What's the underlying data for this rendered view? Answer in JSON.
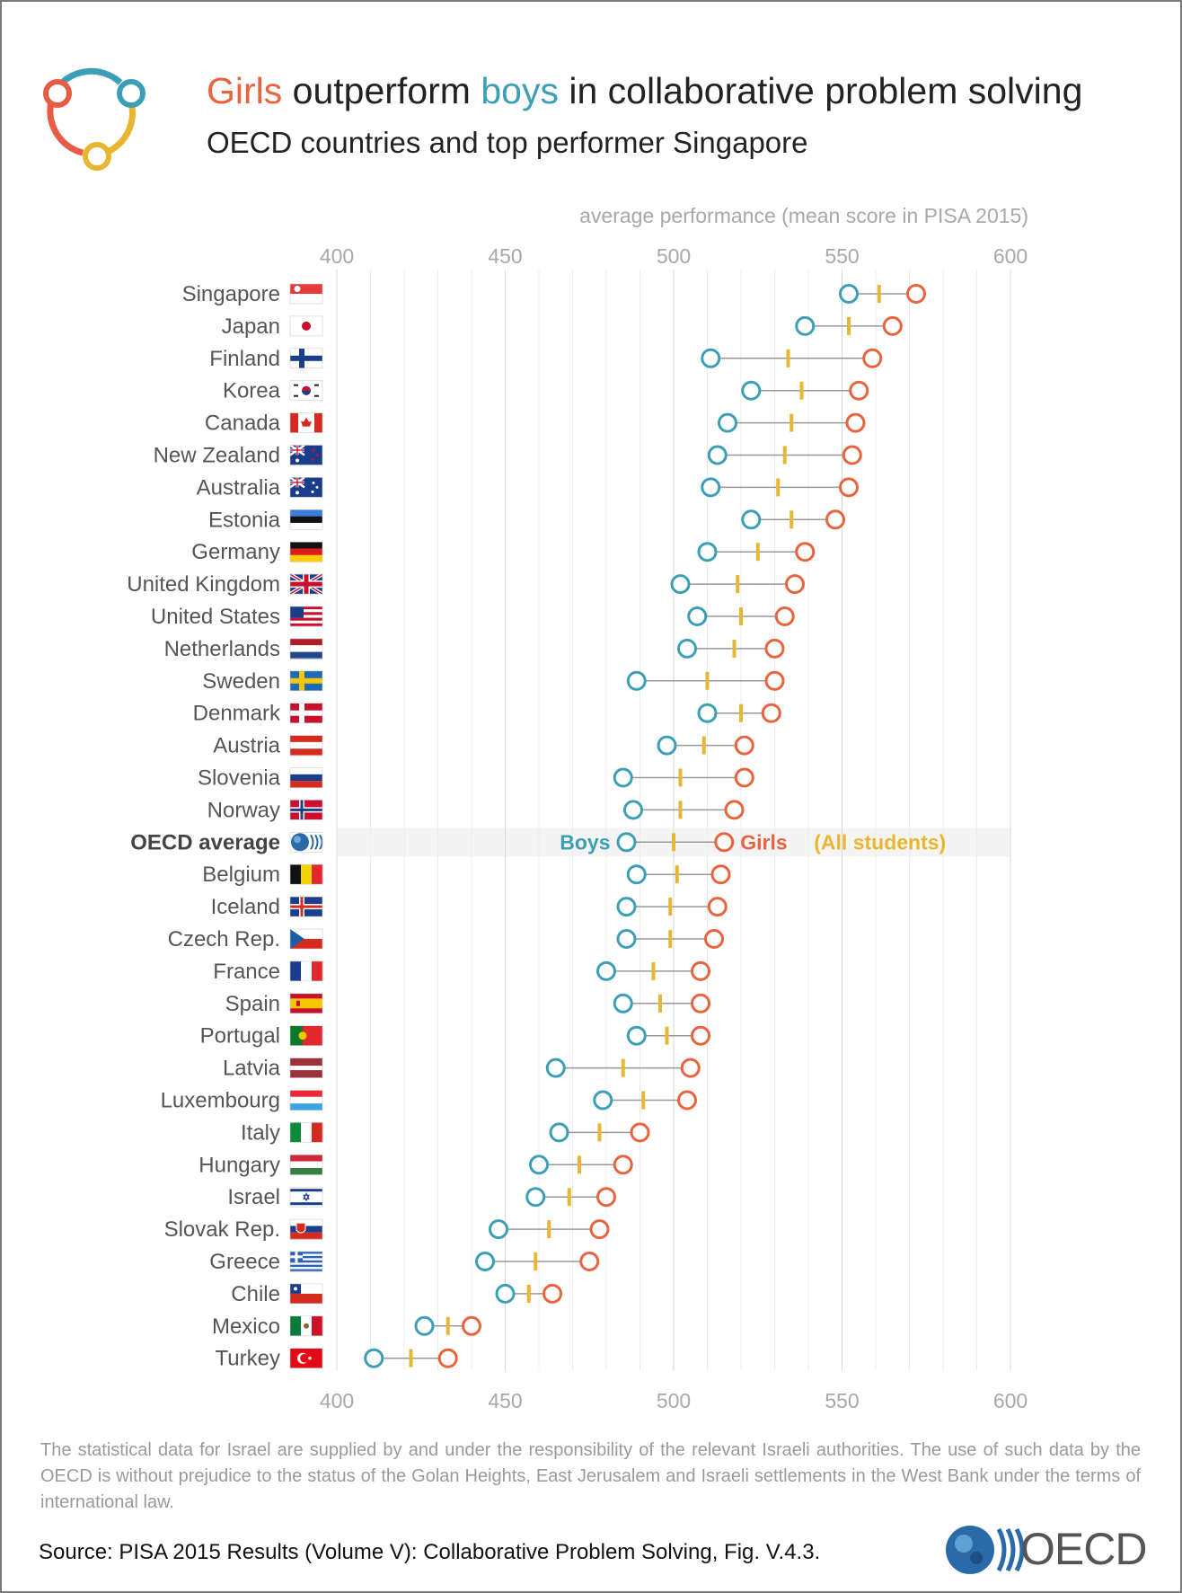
{
  "header": {
    "title_girls": "Girls",
    "title_mid": "outperform",
    "title_boys": "boys",
    "title_rest": "in collaborative problem solving",
    "subtitle": "OECD countries and top performer Singapore"
  },
  "chart_data": {
    "type": "dot-range",
    "axis_title": "average performance (mean score in PISA 2015)",
    "xlim": [
      400,
      600
    ],
    "ticks": [
      400,
      450,
      500,
      550,
      600
    ],
    "grid": true,
    "colors": {
      "boys": "#3d9fb5",
      "girls": "#e8643f",
      "all": "#e8b631",
      "connector": "#999999"
    },
    "legend": {
      "boys": "Boys",
      "girls": "Girls",
      "all": "(All students)"
    },
    "highlight_row": "OECD average",
    "rows": [
      {
        "country": "Singapore",
        "boys": 552,
        "girls": 572,
        "all": 561,
        "flag": "singapore-flag"
      },
      {
        "country": "Japan",
        "boys": 539,
        "girls": 565,
        "all": 552,
        "flag": "japan-flag"
      },
      {
        "country": "Finland",
        "boys": 511,
        "girls": 559,
        "all": 534,
        "flag": "finland-flag"
      },
      {
        "country": "Korea",
        "boys": 523,
        "girls": 555,
        "all": 538,
        "flag": "korea-flag"
      },
      {
        "country": "Canada",
        "boys": 516,
        "girls": 554,
        "all": 535,
        "flag": "canada-flag"
      },
      {
        "country": "New Zealand",
        "boys": 513,
        "girls": 553,
        "all": 533,
        "flag": "new-zealand-flag"
      },
      {
        "country": "Australia",
        "boys": 511,
        "girls": 552,
        "all": 531,
        "flag": "australia-flag"
      },
      {
        "country": "Estonia",
        "boys": 523,
        "girls": 548,
        "all": 535,
        "flag": "estonia-flag"
      },
      {
        "country": "Germany",
        "boys": 510,
        "girls": 539,
        "all": 525,
        "flag": "germany-flag"
      },
      {
        "country": "United Kingdom",
        "boys": 502,
        "girls": 536,
        "all": 519,
        "flag": "united-kingdom-flag"
      },
      {
        "country": "United States",
        "boys": 507,
        "girls": 533,
        "all": 520,
        "flag": "united-states-flag"
      },
      {
        "country": "Netherlands",
        "boys": 504,
        "girls": 530,
        "all": 518,
        "flag": "netherlands-flag"
      },
      {
        "country": "Sweden",
        "boys": 489,
        "girls": 530,
        "all": 510,
        "flag": "sweden-flag"
      },
      {
        "country": "Denmark",
        "boys": 510,
        "girls": 529,
        "all": 520,
        "flag": "denmark-flag"
      },
      {
        "country": "Austria",
        "boys": 498,
        "girls": 521,
        "all": 509,
        "flag": "austria-flag"
      },
      {
        "country": "Slovenia",
        "boys": 485,
        "girls": 521,
        "all": 502,
        "flag": "slovenia-flag"
      },
      {
        "country": "Norway",
        "boys": 488,
        "girls": 518,
        "all": 502,
        "flag": "norway-flag"
      },
      {
        "country": "OECD average",
        "boys": 486,
        "girls": 515,
        "all": 500,
        "flag": "oecd-globe-icon"
      },
      {
        "country": "Belgium",
        "boys": 489,
        "girls": 514,
        "all": 501,
        "flag": "belgium-flag"
      },
      {
        "country": "Iceland",
        "boys": 486,
        "girls": 513,
        "all": 499,
        "flag": "iceland-flag"
      },
      {
        "country": "Czech Rep.",
        "boys": 486,
        "girls": 512,
        "all": 499,
        "flag": "czech-flag"
      },
      {
        "country": "France",
        "boys": 480,
        "girls": 508,
        "all": 494,
        "flag": "france-flag"
      },
      {
        "country": "Spain",
        "boys": 485,
        "girls": 508,
        "all": 496,
        "flag": "spain-flag"
      },
      {
        "country": "Portugal",
        "boys": 489,
        "girls": 508,
        "all": 498,
        "flag": "portugal-flag"
      },
      {
        "country": "Latvia",
        "boys": 465,
        "girls": 505,
        "all": 485,
        "flag": "latvia-flag"
      },
      {
        "country": "Luxembourg",
        "boys": 479,
        "girls": 504,
        "all": 491,
        "flag": "luxembourg-flag"
      },
      {
        "country": "Italy",
        "boys": 466,
        "girls": 490,
        "all": 478,
        "flag": "italy-flag"
      },
      {
        "country": "Hungary",
        "boys": 460,
        "girls": 485,
        "all": 472,
        "flag": "hungary-flag"
      },
      {
        "country": "Israel",
        "boys": 459,
        "girls": 480,
        "all": 469,
        "flag": "israel-flag"
      },
      {
        "country": "Slovak Rep.",
        "boys": 448,
        "girls": 478,
        "all": 463,
        "flag": "slovakia-flag"
      },
      {
        "country": "Greece",
        "boys": 444,
        "girls": 475,
        "all": 459,
        "flag": "greece-flag"
      },
      {
        "country": "Chile",
        "boys": 450,
        "girls": 464,
        "all": 457,
        "flag": "chile-flag"
      },
      {
        "country": "Mexico",
        "boys": 426,
        "girls": 440,
        "all": 433,
        "flag": "mexico-flag"
      },
      {
        "country": "Turkey",
        "boys": 411,
        "girls": 433,
        "all": 422,
        "flag": "turkey-flag"
      }
    ]
  },
  "footer": {
    "note": "The statistical data for Israel are supplied by and under the responsibility of the relevant Israeli authorities. The use of such data by the OECD is without prejudice to the status of the Golan Heights, East Jerusalem and Israeli settlements in the West Bank under the terms of international law.",
    "source": "Source: PISA 2015 Results (Volume V): Collaborative Problem Solving, Fig. V.4.3.",
    "logo_text": "OECD"
  }
}
